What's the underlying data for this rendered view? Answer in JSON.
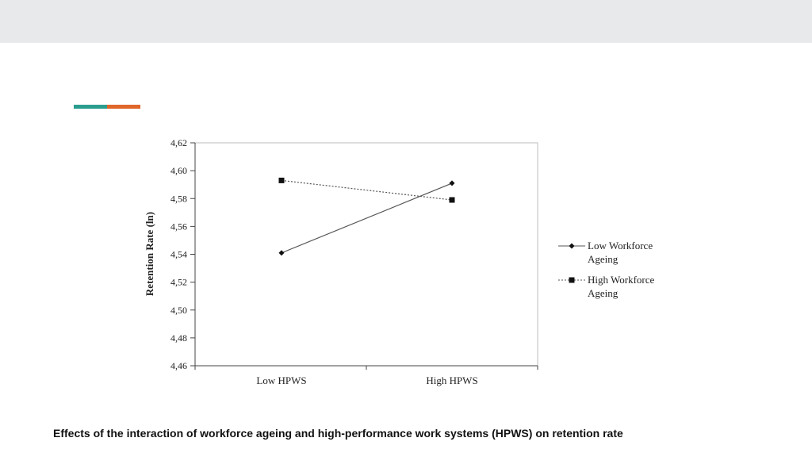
{
  "slide": {
    "caption": "Effects of the interaction of workforce ageing and high-performance work systems (HPWS) on retention rate",
    "accent_colors": [
      "#2a9d8f",
      "#e0662a"
    ],
    "header_band_color": "#e8e9eb"
  },
  "chart_data": {
    "type": "line",
    "title": "",
    "xlabel": "",
    "ylabel": "Retention Rate (ln)",
    "categories": [
      "Low HPWS",
      "High HPWS"
    ],
    "ylim": [
      4.46,
      4.62
    ],
    "yticks": [
      "4,62",
      "4,60",
      "4,58",
      "4,56",
      "4,54",
      "4,52",
      "4,50",
      "4,48",
      "4,46"
    ],
    "ytick_values": [
      4.62,
      4.6,
      4.58,
      4.56,
      4.54,
      4.52,
      4.5,
      4.48,
      4.46
    ],
    "grid": false,
    "legend_position": "right",
    "series": [
      {
        "name": "Low Workforce Ageing",
        "legend_lines": [
          "Low Workforce",
          "Ageing"
        ],
        "values": [
          4.541,
          4.591
        ],
        "marker": "diamond",
        "line_style": "solid",
        "color": "#555555"
      },
      {
        "name": "High Workforce Ageing",
        "legend_lines": [
          "High Workforce",
          "Ageing"
        ],
        "values": [
          4.593,
          4.579
        ],
        "marker": "square",
        "line_style": "dotted",
        "color": "#555555"
      }
    ]
  }
}
